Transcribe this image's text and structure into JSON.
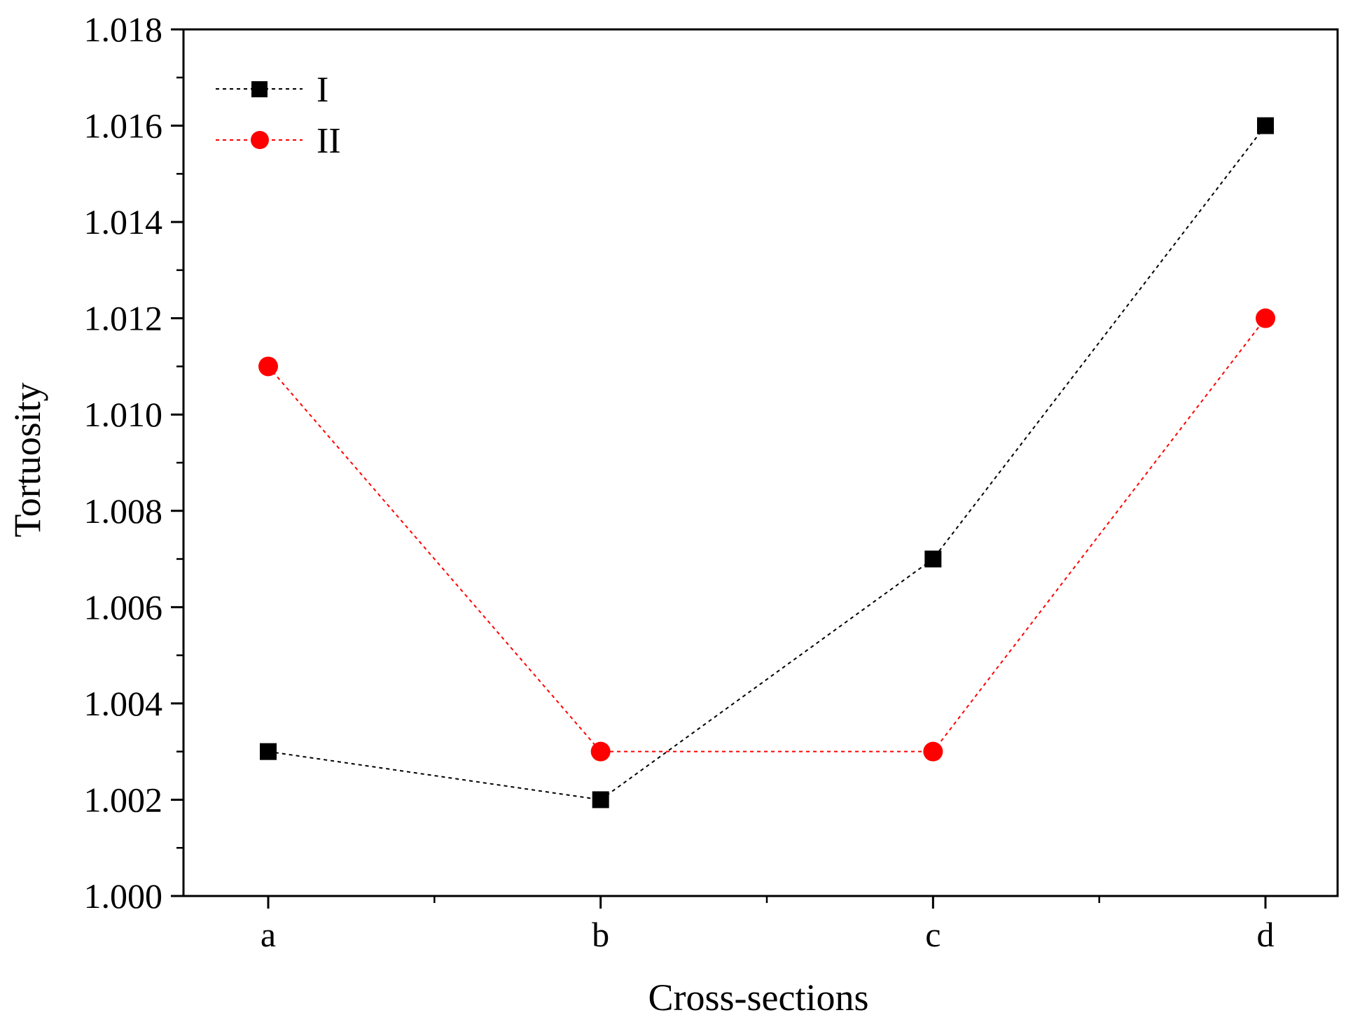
{
  "chart_data": {
    "type": "line",
    "title": "",
    "xlabel": "Cross-sections",
    "ylabel": "Tortuosity",
    "categories": [
      "a",
      "b",
      "c",
      "d"
    ],
    "ylim": [
      1.0,
      1.018
    ],
    "yticks": [
      "1.000",
      "1.002",
      "1.004",
      "1.006",
      "1.008",
      "1.010",
      "1.012",
      "1.014",
      "1.016",
      "1.018"
    ],
    "grid": false,
    "legend_position": "top-left",
    "series": [
      {
        "name": "I",
        "values": [
          1.003,
          1.002,
          1.007,
          1.016
        ],
        "color": "#000000",
        "marker": "square",
        "line_style": "dotted"
      },
      {
        "name": "II",
        "values": [
          1.011,
          1.003,
          1.003,
          1.012
        ],
        "color": "#ff0000",
        "marker": "circle",
        "line_style": "dotted"
      }
    ]
  }
}
